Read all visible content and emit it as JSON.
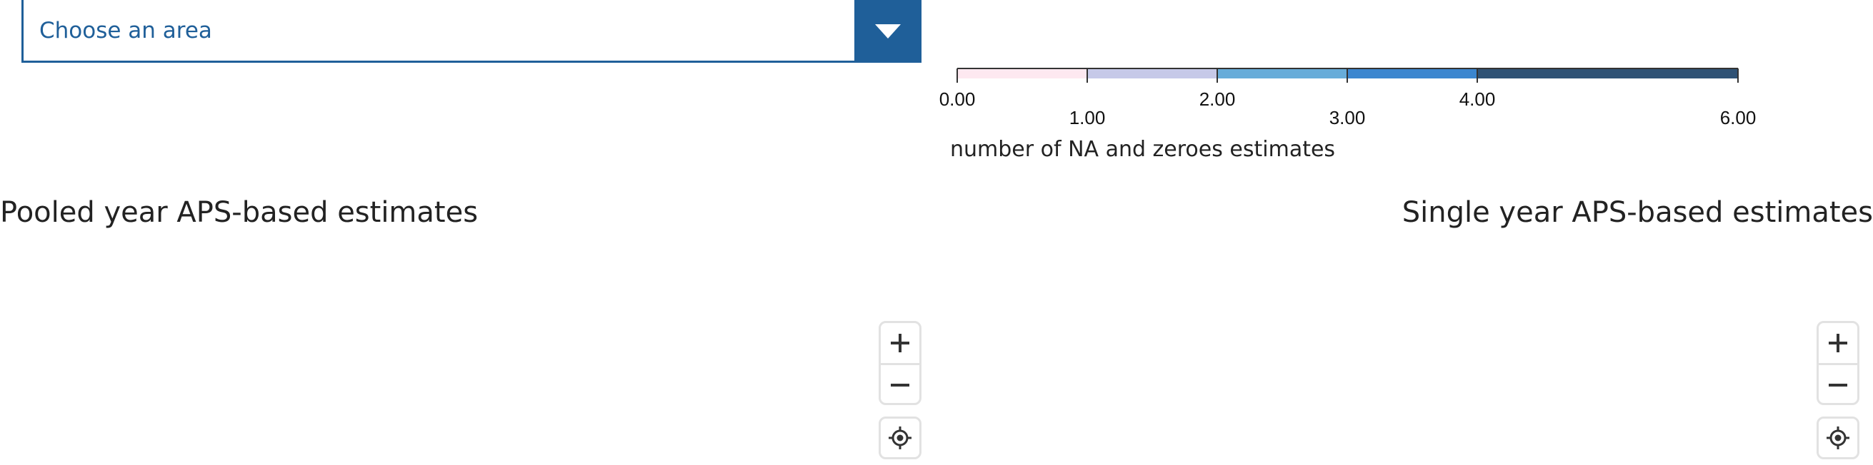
{
  "area_select": {
    "value": "Choose an area",
    "toggle_icon": "caret-down-icon",
    "color": "#1f5f99"
  },
  "legend": {
    "title": "number of NA and zeroes estimates",
    "ticks": [
      "0.00",
      "1.00",
      "2.00",
      "3.00",
      "4.00",
      "6.00"
    ],
    "breaks": [
      0,
      1,
      2,
      3,
      4,
      6
    ],
    "bins": [
      {
        "from": 0,
        "to": 1,
        "color": "#fde8f0"
      },
      {
        "from": 1,
        "to": 2,
        "color": "#c6c9e8"
      },
      {
        "from": 2,
        "to": 3,
        "color": "#67acd9"
      },
      {
        "from": 3,
        "to": 4,
        "color": "#3b86cf"
      },
      {
        "from": 4,
        "to": 6,
        "color": "#2f5275"
      }
    ]
  },
  "headings": {
    "pooled": "Pooled year APS-based estimates",
    "single": "Single year APS-based estimates"
  },
  "map_controls": {
    "zoom_in_icon": "plus-icon",
    "zoom_out_icon": "minus-icon",
    "locate_icon": "locate-icon"
  }
}
